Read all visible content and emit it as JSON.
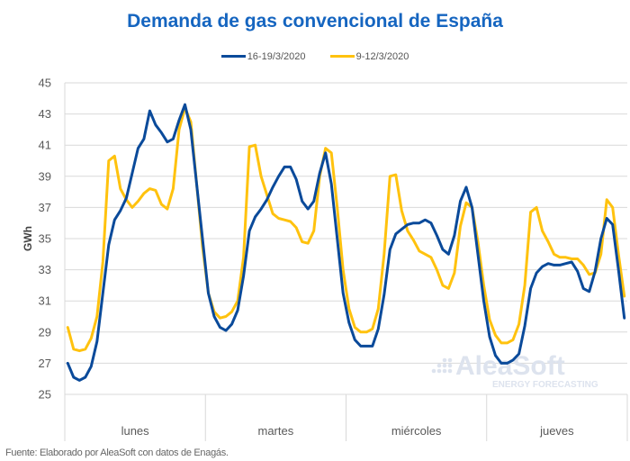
{
  "chart_data": {
    "type": "line",
    "title": "Demanda de gas convencional de España",
    "xlabel": "",
    "ylabel": "GWh",
    "ylim": [
      25,
      45
    ],
    "yticks": [
      25,
      27,
      29,
      31,
      33,
      35,
      37,
      39,
      41,
      43,
      45
    ],
    "categories": [
      "lunes",
      "martes",
      "miércoles",
      "jueves"
    ],
    "points_per_category": 24,
    "grid": true,
    "legend_position": "top",
    "series": [
      {
        "name": "16-19/3/2020",
        "color": "#0a4a9a",
        "values": [
          27.0,
          26.1,
          25.9,
          26.1,
          26.8,
          28.4,
          31.5,
          34.6,
          36.2,
          36.8,
          37.6,
          39.2,
          40.8,
          41.4,
          43.2,
          42.3,
          41.8,
          41.2,
          41.4,
          42.6,
          43.6,
          42.0,
          38.5,
          35.0,
          31.5,
          30.0,
          29.3,
          29.1,
          29.5,
          30.4,
          32.6,
          35.5,
          36.4,
          36.9,
          37.5,
          38.3,
          39.0,
          39.6,
          39.6,
          38.8,
          37.4,
          36.9,
          37.4,
          39.2,
          40.5,
          38.5,
          35.0,
          31.5,
          29.6,
          28.5,
          28.1,
          28.1,
          28.1,
          29.2,
          31.4,
          34.3,
          35.3,
          35.6,
          35.9,
          36.0,
          36.0,
          36.2,
          36.0,
          35.2,
          34.3,
          34.0,
          35.2,
          37.4,
          38.3,
          37.0,
          34.0,
          31.0,
          28.7,
          27.5,
          27.0,
          27.0,
          27.2,
          27.6,
          29.4,
          31.8,
          32.8,
          33.2,
          33.4,
          33.3,
          33.3,
          33.4,
          33.5,
          32.9,
          31.8,
          31.6,
          32.9,
          35.0,
          36.3,
          35.9,
          33.0,
          29.9
        ]
      },
      {
        "name": "9-12/3/2020",
        "color": "#ffc20e",
        "values": [
          29.3,
          27.9,
          27.8,
          27.9,
          28.6,
          30.0,
          33.5,
          40.0,
          40.3,
          38.2,
          37.5,
          37.0,
          37.4,
          37.9,
          38.2,
          38.1,
          37.2,
          36.9,
          38.2,
          42.0,
          43.4,
          42.5,
          38.5,
          34.5,
          31.5,
          30.3,
          29.9,
          30.0,
          30.3,
          31.0,
          33.8,
          40.9,
          41.0,
          39.0,
          37.8,
          36.6,
          36.3,
          36.2,
          36.1,
          35.7,
          34.8,
          34.7,
          35.5,
          39.0,
          40.8,
          40.5,
          37.0,
          33.0,
          30.5,
          29.3,
          29.0,
          29.0,
          29.2,
          30.5,
          34.0,
          39.0,
          39.1,
          36.8,
          35.5,
          34.9,
          34.2,
          34.0,
          33.8,
          33.0,
          32.0,
          31.8,
          32.8,
          35.8,
          37.3,
          37.0,
          34.8,
          32.0,
          29.8,
          28.8,
          28.3,
          28.3,
          28.5,
          29.5,
          32.0,
          36.7,
          37.0,
          35.5,
          34.8,
          34.0,
          33.8,
          33.8,
          33.7,
          33.7,
          33.3,
          32.7,
          32.8,
          34.0,
          37.5,
          37.0,
          34.0,
          31.3
        ]
      }
    ]
  },
  "title": "Demanda de gas convencional de España",
  "legend": [
    {
      "label": "16-19/3/2020",
      "color": "#0a4a9a"
    },
    {
      "label": "9-12/3/2020",
      "color": "#ffc20e"
    }
  ],
  "watermark": {
    "brand": "AleaSoft",
    "tagline": "ENERGY FORECASTING"
  },
  "source": "Fuente: Elaborado por AleaSoft con datos de Enagás."
}
